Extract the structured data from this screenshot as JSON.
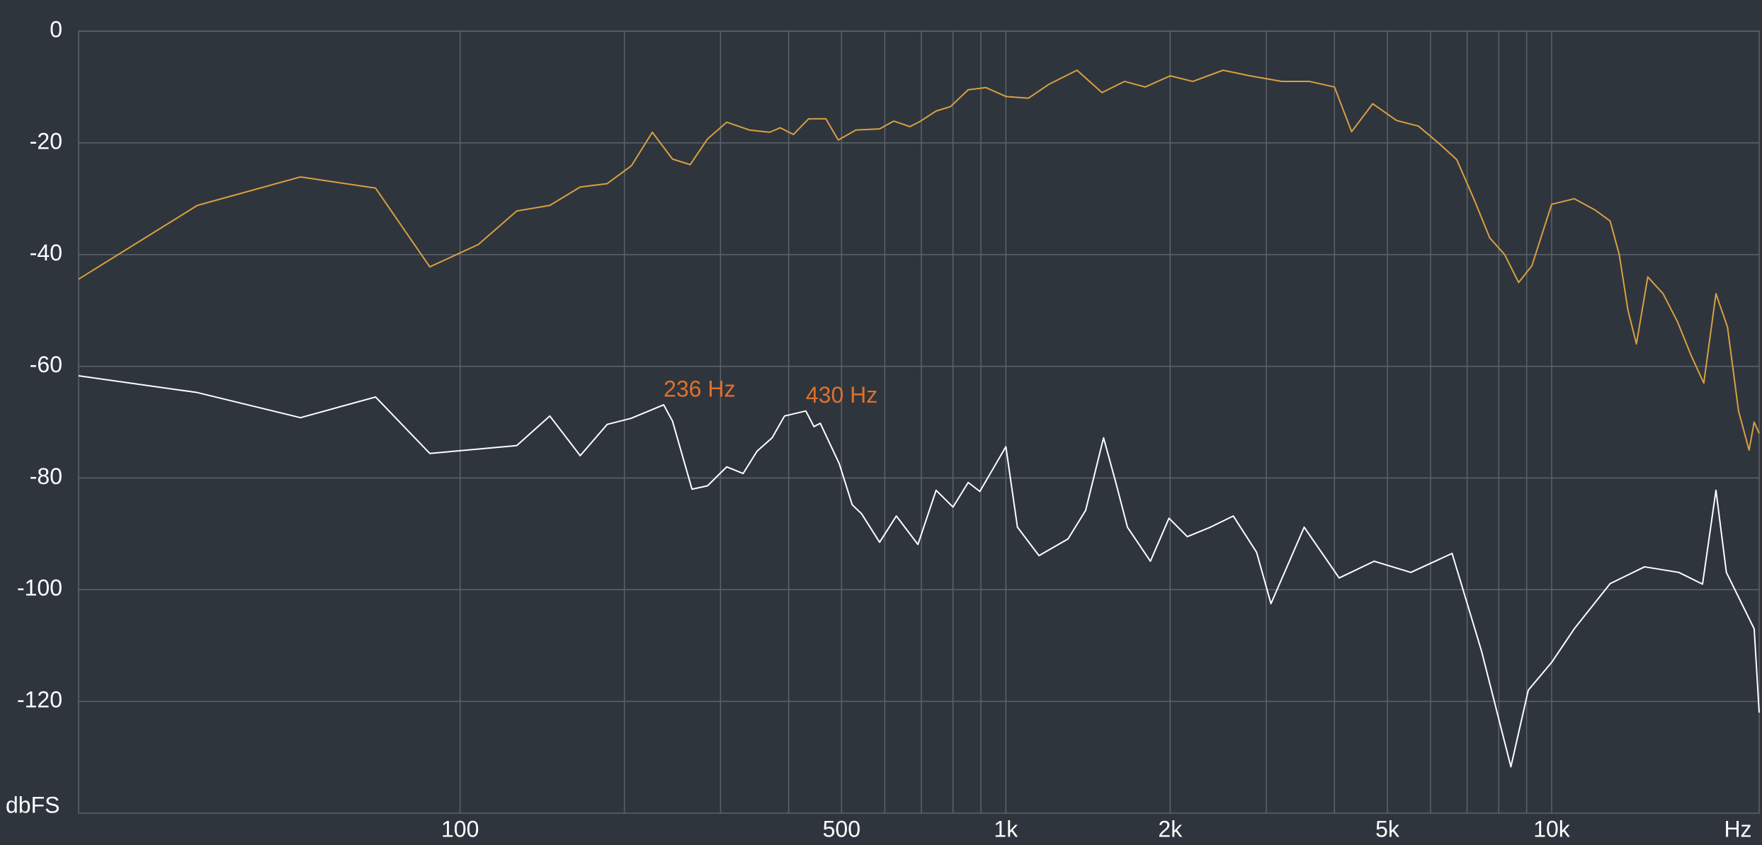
{
  "chart_data": {
    "type": "line",
    "x_scale": "log",
    "xlabel": "Hz",
    "ylabel": "dbFS",
    "xlim": [
      20,
      24000
    ],
    "ylim": [
      -140,
      0
    ],
    "xticks": [
      100,
      500,
      {
        "value": 1000,
        "label": "1k"
      },
      {
        "value": 2000,
        "label": "2k"
      },
      {
        "value": 5000,
        "label": "5k"
      },
      {
        "value": 10000,
        "label": "10k"
      }
    ],
    "xgrid_minor": [
      200,
      300,
      400,
      600,
      700,
      800,
      900,
      3000,
      4000,
      6000,
      7000,
      8000,
      9000
    ],
    "yticks": [
      0,
      -20,
      -40,
      -60,
      -80,
      -100,
      -120
    ],
    "grid": true,
    "series": [
      {
        "color": "#d9a040",
        "x": [
          20,
          33,
          51,
          70,
          88,
          108,
          127,
          146,
          166,
          186,
          206,
          225,
          245,
          264,
          284,
          308,
          339,
          369,
          386,
          408,
          435,
          468,
          493,
          531,
          587,
          623,
          667,
          698,
          745,
          792,
          853,
          919,
          1000,
          1100,
          1200,
          1350,
          1500,
          1650,
          1800,
          2000,
          2200,
          2500,
          2800,
          3200,
          3600,
          4000,
          4300,
          4700,
          5200,
          5700,
          6200,
          6700,
          7200,
          7700,
          8200,
          8700,
          9200,
          10000,
          11000,
          12000,
          12800,
          13300,
          13800,
          14300,
          15000,
          16000,
          17000,
          18000,
          19000,
          20000,
          21000,
          22000,
          23000,
          23500,
          24000
        ],
        "values": [
          -44.4,
          -31.2,
          -26.1,
          -28.1,
          -42.2,
          -38.2,
          -32.2,
          -31.2,
          -27.9,
          -27.3,
          -24.1,
          -18.1,
          -22.9,
          -23.9,
          -19.3,
          -16.3,
          -17.7,
          -18.1,
          -17.3,
          -18.5,
          -15.7,
          -15.7,
          -19.5,
          -17.7,
          -17.5,
          -16.1,
          -17.1,
          -16.1,
          -14.3,
          -13.5,
          -10.5,
          -10.1,
          -11.7,
          -12,
          -9.5,
          -7,
          -11,
          -9,
          -10,
          -8,
          -9,
          -7,
          -8,
          -9,
          -9,
          -10,
          -18,
          -13,
          -16,
          -17,
          -20,
          -23,
          -30,
          -37,
          -40,
          -45,
          -42,
          -31,
          -30,
          -32,
          -34,
          -40,
          -50,
          -56,
          -44,
          -47,
          -52,
          -58,
          -63,
          -47,
          -53,
          -68,
          -75,
          -70,
          -72
        ]
      },
      {
        "color": "#ffffff",
        "x": [
          20,
          33,
          51,
          70,
          88,
          127,
          146,
          166,
          186,
          206,
          236,
          245,
          266,
          284,
          308,
          330,
          350,
          373,
          393,
          430,
          445,
          457,
          495,
          523,
          544,
          587,
          630,
          690,
          745,
          800,
          853,
          896,
          1000,
          1050,
          1150,
          1300,
          1400,
          1510,
          1590,
          1670,
          1840,
          1990,
          2150,
          2370,
          2610,
          2880,
          3060,
          3520,
          4080,
          4730,
          5520,
          6570,
          7440,
          8420,
          9060,
          10000,
          11000,
          12800,
          14800,
          17100,
          18900,
          20000,
          20900,
          23500,
          24000
        ],
        "values": [
          -61.7,
          -64.7,
          -69.2,
          -65.5,
          -75.6,
          -74.2,
          -68.9,
          -76,
          -70.4,
          -69.3,
          -66.9,
          -69.8,
          -82,
          -81.4,
          -78,
          -79.2,
          -75.2,
          -72.8,
          -68.9,
          -68,
          -70.8,
          -70.2,
          -77.4,
          -84.8,
          -86.4,
          -91.5,
          -86.8,
          -91.9,
          -82.2,
          -85.2,
          -80.8,
          -82.4,
          -74.4,
          -88.8,
          -93.9,
          -90.9,
          -85.8,
          -72.8,
          -80.8,
          -88.8,
          -94.9,
          -87.2,
          -90.5,
          -88.8,
          -86.8,
          -93.3,
          -102.5,
          -88.8,
          -97.9,
          -94.9,
          -96.9,
          -93.5,
          -111,
          -131.7,
          -118,
          -113,
          -107,
          -98.9,
          -95.9,
          -96.9,
          -99,
          -82.2,
          -96.9,
          -107,
          -122
        ]
      }
    ],
    "annotations": [
      {
        "text": "236 Hz",
        "x": 236,
        "y": -66.9,
        "color": "#e0702a"
      },
      {
        "text": "430 Hz",
        "x": 430,
        "y": -68,
        "color": "#e0702a"
      }
    ]
  }
}
